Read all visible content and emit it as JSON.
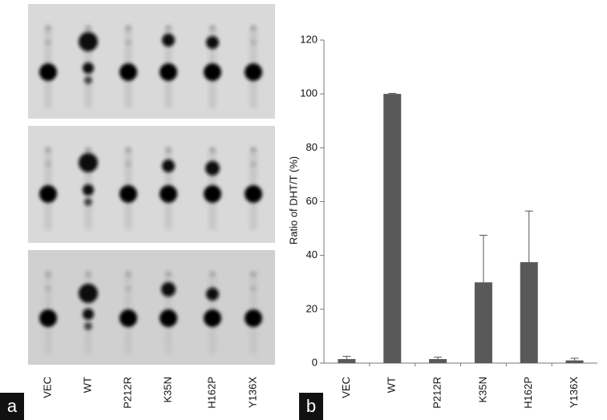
{
  "gel": {
    "lanes": [
      "VEC",
      "WT",
      "P212R",
      "K35N",
      "H162P",
      "Y136X"
    ],
    "panel_label": "a"
  },
  "chart_data": {
    "type": "bar",
    "panel_label": "b",
    "y_label": "Ratio of DHT/T (%)",
    "categories": [
      "VEC",
      "WT",
      "P212R",
      "K35N",
      "H162P",
      "Y136X"
    ],
    "values": [
      1.5,
      100,
      1.5,
      30,
      37.5,
      1
    ],
    "errors": [
      1,
      0.2,
      0.7,
      17.5,
      19,
      0.8
    ],
    "color": "#595959",
    "ylim": [
      0,
      120
    ],
    "yticks": [
      0,
      20,
      40,
      60,
      80,
      100,
      120
    ],
    "grid": false
  }
}
